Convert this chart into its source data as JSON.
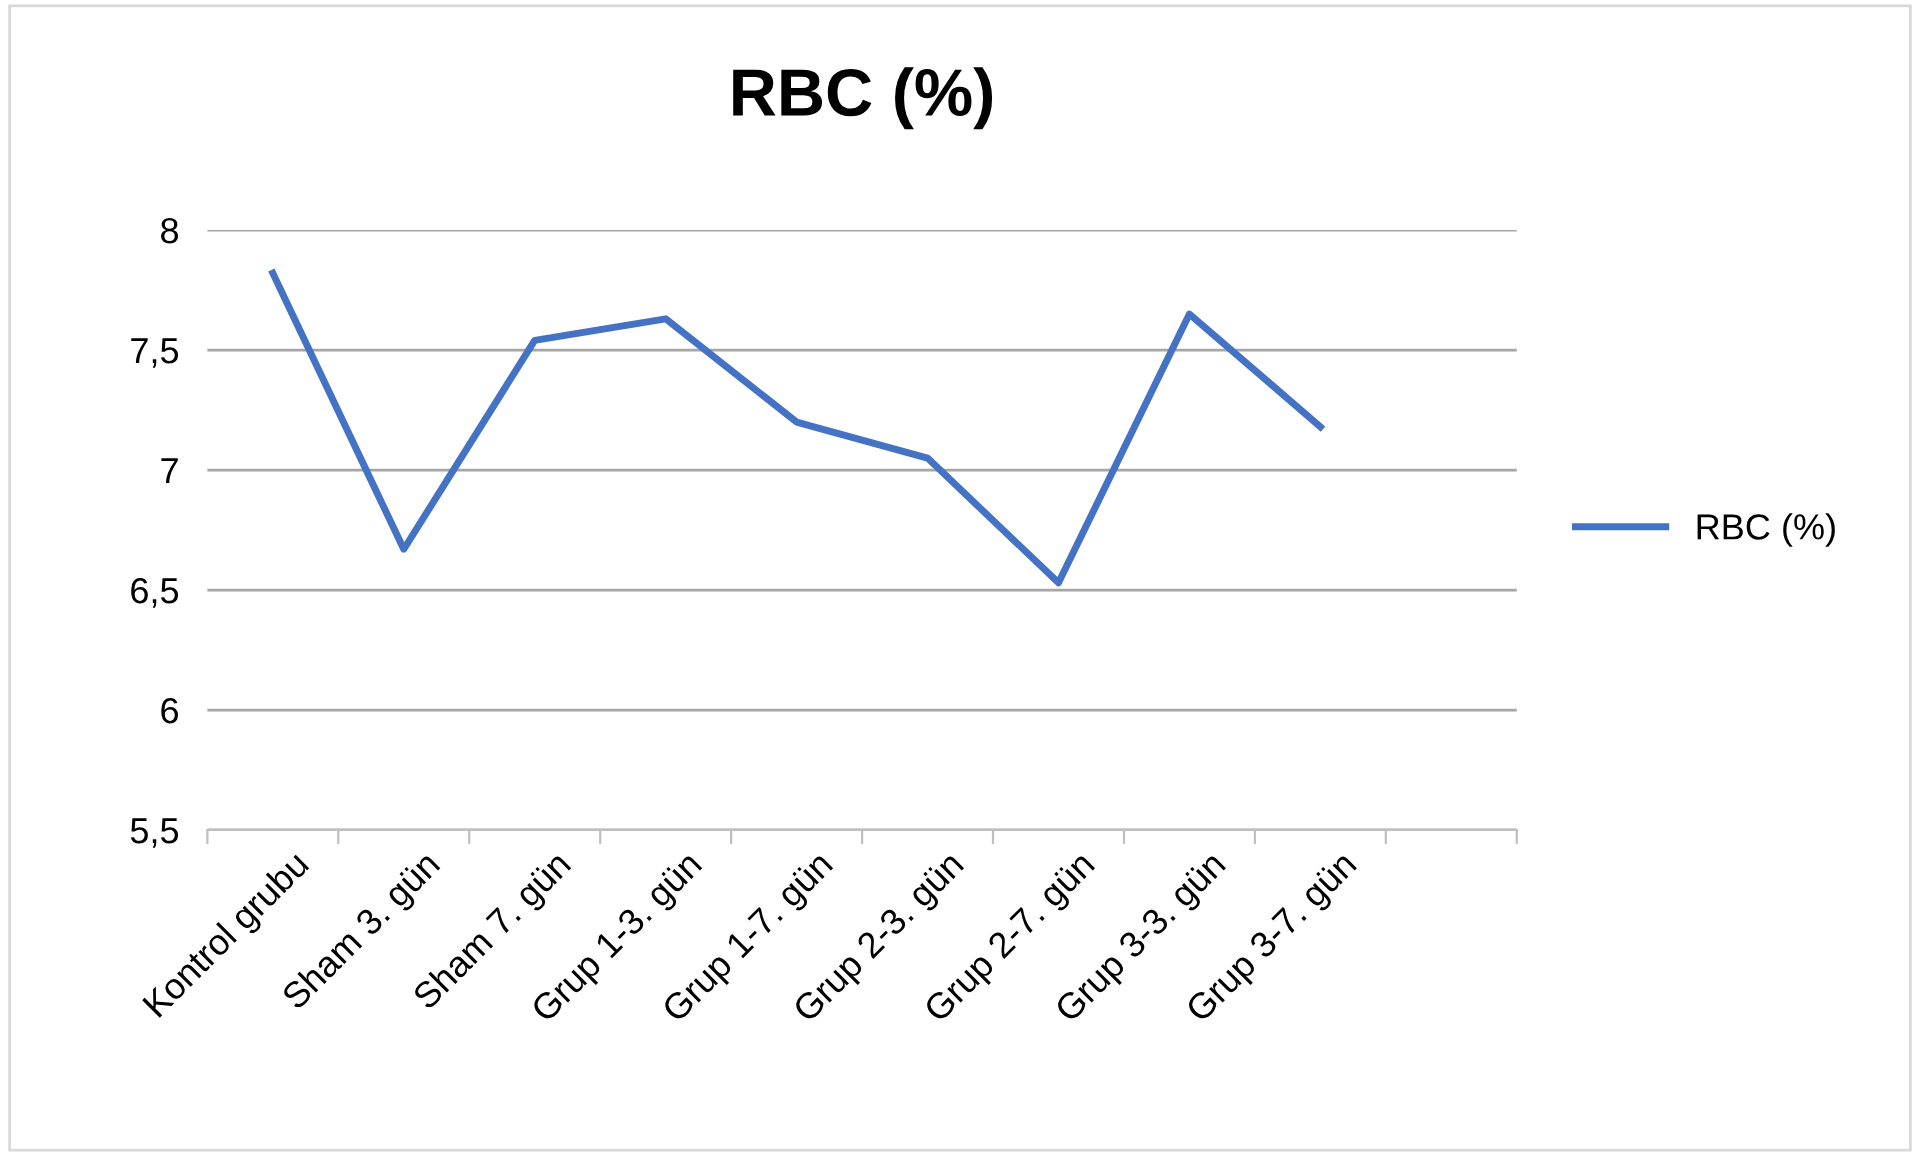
{
  "chart_data": {
    "type": "line",
    "title": "RBC (%)",
    "categories": [
      "Kontrol grubu",
      "Sham 3. gün",
      "Sham 7. gün",
      "Grup 1-3. gün",
      "Grup 1-7. gün",
      "Grup 2-3. gün",
      "Grup 2-7. gün",
      "Grup 3-3. gün",
      "Grup 3-7. gün",
      null
    ],
    "series": [
      {
        "name": "RBC (%)",
        "color": "#4472c4",
        "values": [
          7.82,
          6.67,
          7.54,
          7.63,
          7.2,
          7.05,
          6.53,
          7.65,
          7.18,
          null
        ]
      }
    ],
    "ylim": [
      5.5,
      8
    ],
    "yticks": [
      {
        "value": 5.5,
        "label": "5,5"
      },
      {
        "value": 6,
        "label": "6"
      },
      {
        "value": 6.5,
        "label": "6,5"
      },
      {
        "value": 7,
        "label": "7"
      },
      {
        "value": 7.5,
        "label": "7,5"
      },
      {
        "value": 8,
        "label": "8"
      }
    ],
    "grid": "y",
    "legend": "right",
    "marker": "none",
    "line_style": "solid"
  }
}
